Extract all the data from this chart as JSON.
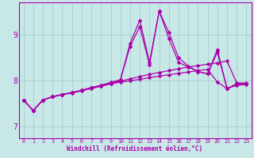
{
  "title": "",
  "xlabel": "Windchill (Refroidissement éolien,°C)",
  "ylabel": "",
  "background_color": "#c8e8e8",
  "grid_color": "#a0c8c8",
  "line_color": "#aa00aa",
  "text_color": "#aa00aa",
  "spine_color": "#aa00aa",
  "xlim": [
    -0.5,
    23.5
  ],
  "ylim": [
    6.75,
    9.7
  ],
  "yticks": [
    7,
    8,
    9
  ],
  "xticks": [
    0,
    1,
    2,
    3,
    4,
    5,
    6,
    7,
    8,
    9,
    10,
    11,
    12,
    13,
    14,
    15,
    16,
    17,
    18,
    19,
    20,
    21,
    22,
    23
  ],
  "series": [
    [
      7.58,
      7.35,
      7.58,
      7.65,
      7.7,
      7.73,
      7.78,
      7.83,
      7.88,
      7.93,
      7.97,
      8.0,
      8.03,
      8.07,
      8.1,
      8.13,
      8.16,
      8.19,
      8.22,
      8.25,
      7.97,
      7.83,
      7.9,
      7.92
    ],
    [
      7.58,
      7.35,
      7.58,
      7.65,
      7.7,
      7.74,
      7.79,
      7.84,
      7.89,
      7.94,
      7.99,
      8.04,
      8.09,
      8.14,
      8.18,
      8.22,
      8.26,
      8.3,
      8.33,
      8.36,
      8.39,
      8.43,
      7.95,
      7.95
    ],
    [
      7.58,
      7.35,
      7.58,
      7.65,
      7.7,
      7.74,
      7.79,
      7.85,
      7.9,
      7.96,
      8.02,
      8.75,
      9.18,
      8.35,
      9.52,
      9.05,
      8.5,
      8.32,
      8.2,
      8.15,
      8.68,
      7.83,
      7.93,
      7.93
    ],
    [
      7.58,
      7.35,
      7.58,
      7.65,
      7.7,
      7.74,
      7.79,
      7.85,
      7.9,
      7.96,
      8.02,
      8.82,
      9.32,
      8.4,
      9.52,
      8.92,
      8.4,
      8.3,
      8.2,
      8.15,
      8.62,
      7.83,
      7.93,
      7.93
    ]
  ],
  "marker_size": 2.5,
  "line_width": 0.9,
  "xlabel_fontsize": 5.5,
  "xtick_fontsize": 4.8,
  "ytick_fontsize": 7.0
}
